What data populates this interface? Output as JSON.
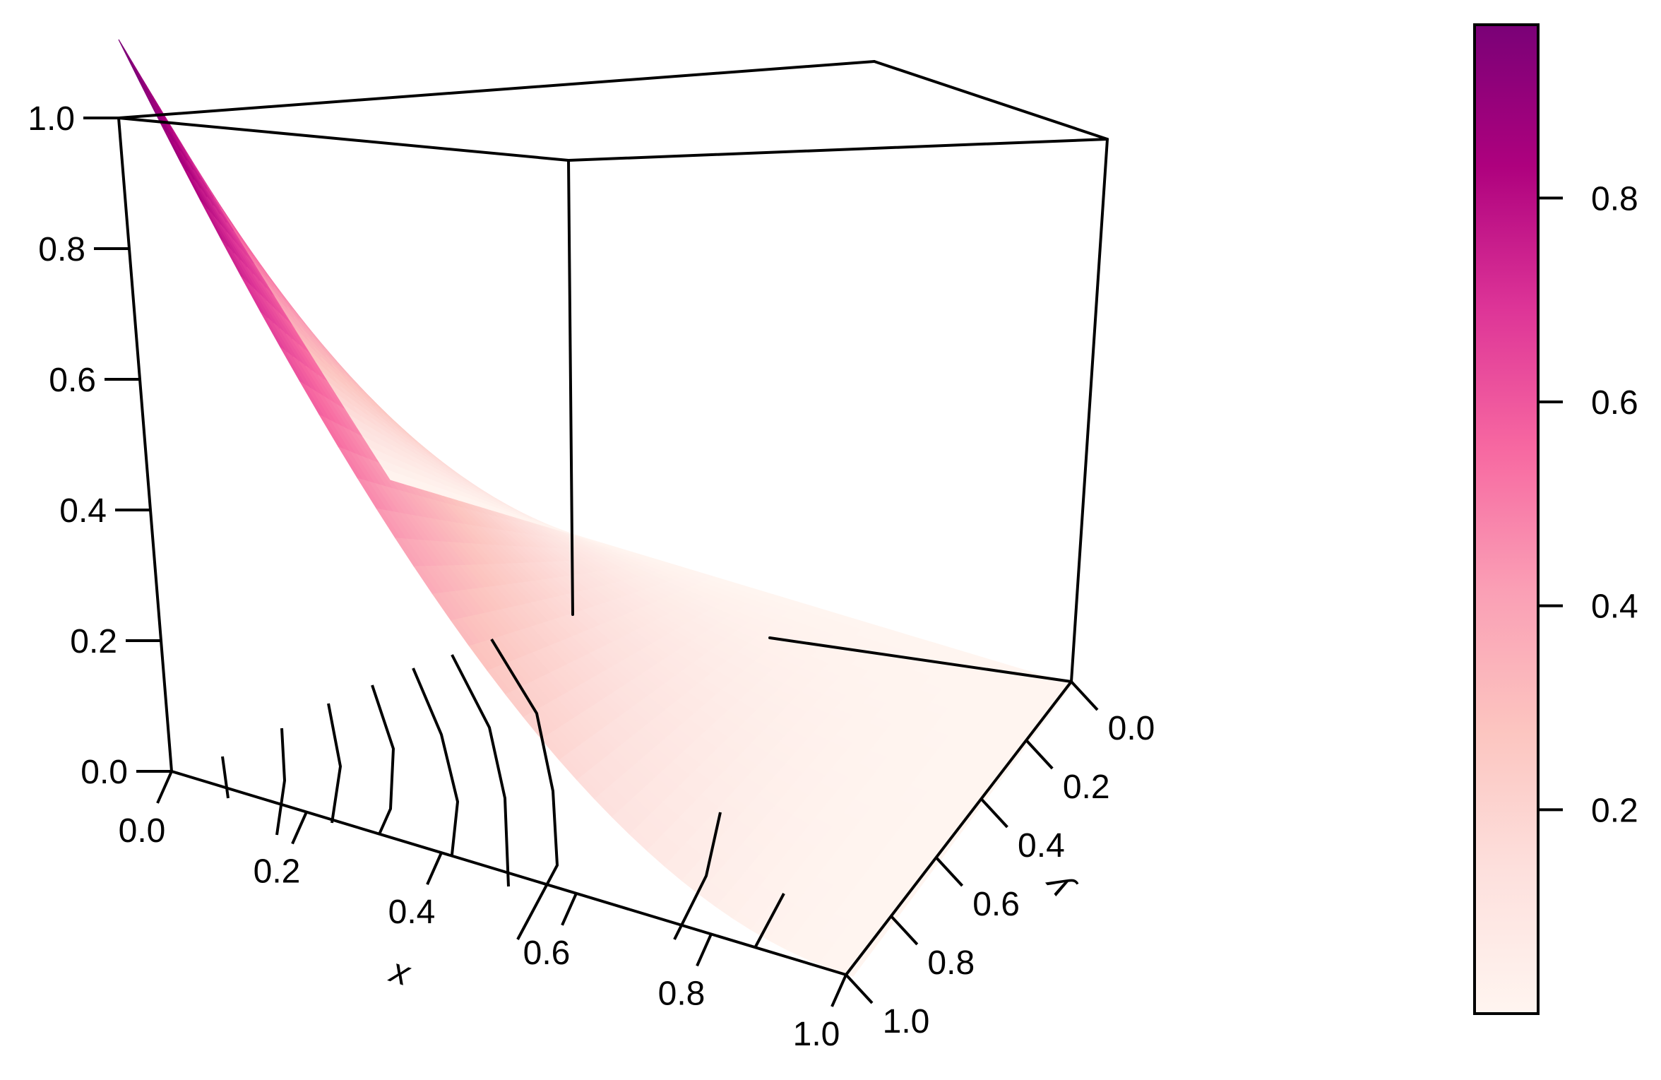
{
  "chart_data": [
    {
      "type": "surface3d",
      "title": "",
      "surface_function": "z = (1 - y) * x^2",
      "x": {
        "label": "x",
        "ticks": [
          "0.0",
          "0.2",
          "0.4",
          "0.6",
          "0.8",
          "1.0"
        ],
        "range": [
          0,
          1
        ]
      },
      "y": {
        "label": "y",
        "ticks": [
          "0.0",
          "0.2",
          "0.4",
          "0.6",
          "0.8",
          "1.0"
        ],
        "range": [
          0,
          1
        ]
      },
      "z": {
        "label": "",
        "ticks": [
          "0.0",
          "0.2",
          "0.4",
          "0.6",
          "0.8",
          "1.0"
        ],
        "range": [
          0,
          1
        ]
      },
      "surface_points": [
        {
          "x": 1.0,
          "y": 0.0,
          "z": 1.0
        },
        {
          "x": 0.0,
          "y": 0.0,
          "z": 0.0
        },
        {
          "x": 0.0,
          "y": 1.0,
          "z": 0.0
        },
        {
          "x": 1.0,
          "y": 1.0,
          "z": 0.0
        }
      ],
      "floor_contours": {
        "shown": true,
        "count": 11
      },
      "colorscale": {
        "low": "#fff5f0",
        "mid": "#f768a1",
        "high": "#7a0177"
      }
    },
    {
      "type": "colorbar",
      "ticks": [
        "0.2",
        "0.4",
        "0.6",
        "0.8"
      ],
      "tick_values": [
        0.2,
        0.4,
        0.6,
        0.8
      ],
      "range": [
        0.0,
        0.97
      ],
      "stops": [
        "#fff5f0",
        "#fde0dd",
        "#fcc5c0",
        "#fa9fb5",
        "#f768a1",
        "#dd3497",
        "#ae017e",
        "#7a0177"
      ]
    }
  ]
}
